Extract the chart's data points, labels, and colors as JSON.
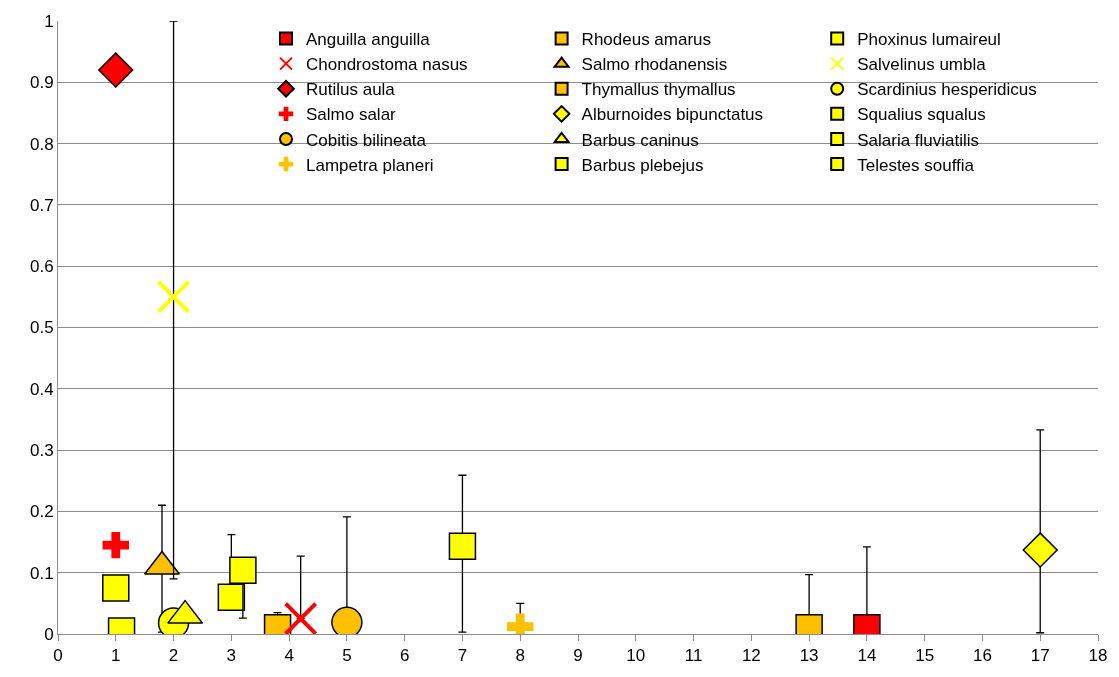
{
  "chart_data": {
    "type": "scatter",
    "xlim": [
      0,
      18
    ],
    "xticks": [
      0,
      1,
      2,
      3,
      4,
      5,
      6,
      7,
      8,
      9,
      10,
      11,
      12,
      13,
      14,
      15,
      16,
      17,
      18
    ],
    "ylim": [
      0,
      1
    ],
    "yticks": [
      0,
      0.1,
      0.2,
      0.3,
      0.4,
      0.5,
      0.6,
      0.7,
      0.8,
      0.9,
      1
    ],
    "grid": "y",
    "legend": "top right",
    "series": [
      {
        "name": "Anguilla anguilla",
        "marker": "square",
        "color": "#ff0000",
        "x": [
          14
        ],
        "values": [
          0.01
        ],
        "errors": [
          [
            0.01,
            0.142
          ]
        ]
      },
      {
        "name": "Rhodeus amarus",
        "marker": "square",
        "color": "#ffc000",
        "x": [
          3.8
        ],
        "values": [
          0.01
        ],
        "errors": [
          [
            0.003,
            0.035
          ]
        ]
      },
      {
        "name": "Phoxinus lumaireul",
        "marker": "square",
        "color": "#ffff00",
        "x": [
          1.1
        ],
        "values": [
          0.005
        ]
      },
      {
        "name": "Chondrostoma nasus",
        "marker": "x",
        "color": "#ff0000",
        "x": [
          4.2
        ],
        "values": [
          0.025
        ],
        "errors": [
          [
            0.025,
            0.127
          ]
        ]
      },
      {
        "name": "Salmo rhodanensis",
        "marker": "triangle",
        "color": "#ffc000",
        "x": [
          1.8
        ],
        "values": [
          0.11
        ],
        "errors": [
          [
            0.003,
            0.21
          ]
        ]
      },
      {
        "name": "Salvelinus umbla",
        "marker": "x",
        "color": "#ffff00",
        "x": [
          2
        ],
        "values": [
          0.55
        ],
        "errors": [
          [
            0.09,
            1.0
          ]
        ]
      },
      {
        "name": "Rutilus aula",
        "marker": "diamond",
        "color": "#ff0000",
        "x": [
          1
        ],
        "values": [
          0.92
        ]
      },
      {
        "name": "Thymallus thymallus",
        "marker": "square",
        "color": "#ffc000",
        "x": [
          13
        ],
        "values": [
          0.01
        ],
        "errors": [
          [
            0.01,
            0.097
          ]
        ]
      },
      {
        "name": "Scardinius hesperidicus",
        "marker": "circle",
        "color": "#ffff00",
        "x": [
          2
        ],
        "values": [
          0.018
        ]
      },
      {
        "name": "Salmo salar",
        "marker": "cross",
        "color": "#ff0000",
        "x": [
          1
        ],
        "values": [
          0.145
        ]
      },
      {
        "name": "Alburnoides bipunctatus",
        "marker": "diamond",
        "color": "#ffff00",
        "x": [
          17
        ],
        "values": [
          0.137
        ],
        "errors": [
          [
            0.002,
            0.333
          ]
        ]
      },
      {
        "name": "Squalius squalus",
        "marker": "square",
        "color": "#ffff00",
        "x": [
          1
        ],
        "values": [
          0.075
        ]
      },
      {
        "name": "Cobitis bilineata",
        "marker": "circle",
        "color": "#ffc000",
        "x": [
          5
        ],
        "values": [
          0.019
        ],
        "errors": [
          [
            0.019,
            0.191
          ]
        ]
      },
      {
        "name": "Barbus caninus",
        "marker": "triangle",
        "color": "#ffff00",
        "x": [
          2.2
        ],
        "values": [
          0.03
        ]
      },
      {
        "name": "Salaria fluviatilis",
        "marker": "square",
        "color": "#ffff00",
        "x": [
          3
        ],
        "values": [
          0.06
        ],
        "errors": [
          [
            0.06,
            0.162
          ]
        ]
      },
      {
        "name": "Lampetra planeri",
        "marker": "cross",
        "color": "#ffc000",
        "x": [
          8
        ],
        "values": [
          0.012
        ],
        "errors": [
          [
            0.001,
            0.05
          ]
        ]
      },
      {
        "name": "Barbus plebejus",
        "marker": "square",
        "color": "#ffff00",
        "x": [
          3.2
        ],
        "values": [
          0.104
        ],
        "errors": [
          [
            0.026,
            0.104
          ]
        ]
      },
      {
        "name": "Telestes souffia",
        "marker": "square",
        "color": "#ffff00",
        "x": [
          7
        ],
        "values": [
          0.143
        ],
        "errors": [
          [
            0.003,
            0.259
          ]
        ]
      }
    ]
  }
}
